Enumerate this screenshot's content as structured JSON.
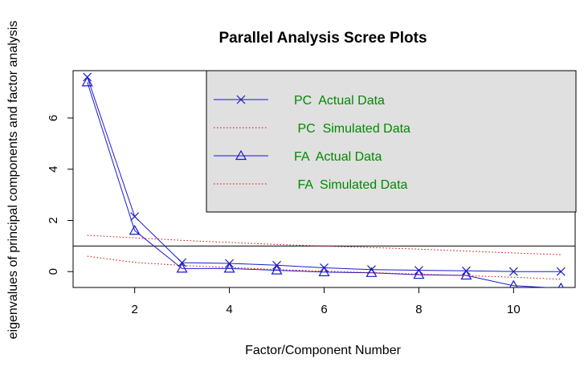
{
  "chart_data": {
    "type": "line",
    "title": "Parallel Analysis Scree Plots",
    "xlabel": "Factor/Component Number",
    "ylabel": "eigenvalues of principal components and factor analysis",
    "xlim": [
      0.7,
      11.3
    ],
    "ylim": [
      -0.62,
      7.85
    ],
    "x_ticks": [
      2,
      4,
      6,
      8,
      10
    ],
    "y_ticks": [
      0,
      2,
      4,
      6
    ],
    "reference_line": 1,
    "legend_position": "top-right",
    "legend_background": "#e0e0e0",
    "series": [
      {
        "name": "PC  Actual Data",
        "color": "#1a1acc",
        "style": "solid",
        "marker": "x",
        "x": [
          1,
          2,
          3,
          4,
          5,
          6,
          7,
          8,
          9,
          10,
          11
        ],
        "values": [
          7.6,
          2.15,
          0.35,
          0.32,
          0.25,
          0.15,
          0.08,
          0.05,
          0.03,
          0.0,
          0.0
        ]
      },
      {
        "name": " PC  Simulated Data",
        "color": "#dd0000",
        "style": "dotted",
        "marker": "none",
        "x": [
          1,
          2,
          3,
          4,
          5,
          6,
          7,
          8,
          9,
          10,
          11
        ],
        "values": [
          1.42,
          1.32,
          1.22,
          1.14,
          1.06,
          1.0,
          0.94,
          0.88,
          0.8,
          0.73,
          0.66
        ]
      },
      {
        "name": "FA  Actual Data",
        "color": "#1a1acc",
        "style": "solid",
        "marker": "triangle",
        "x": [
          1,
          2,
          3,
          4,
          5,
          6,
          7,
          8,
          9,
          10,
          11
        ],
        "values": [
          7.4,
          1.6,
          0.12,
          0.12,
          0.05,
          -0.02,
          -0.05,
          -0.12,
          -0.15,
          -0.55,
          -0.65
        ]
      },
      {
        "name": " FA  Simulated Data",
        "color": "#dd0000",
        "style": "dotted",
        "marker": "none",
        "x": [
          1,
          2,
          3,
          4,
          5,
          6,
          7,
          8,
          9,
          10,
          11
        ],
        "values": [
          0.6,
          0.36,
          0.24,
          0.16,
          0.08,
          0.02,
          -0.04,
          -0.1,
          -0.16,
          -0.22,
          -0.3
        ]
      }
    ]
  }
}
